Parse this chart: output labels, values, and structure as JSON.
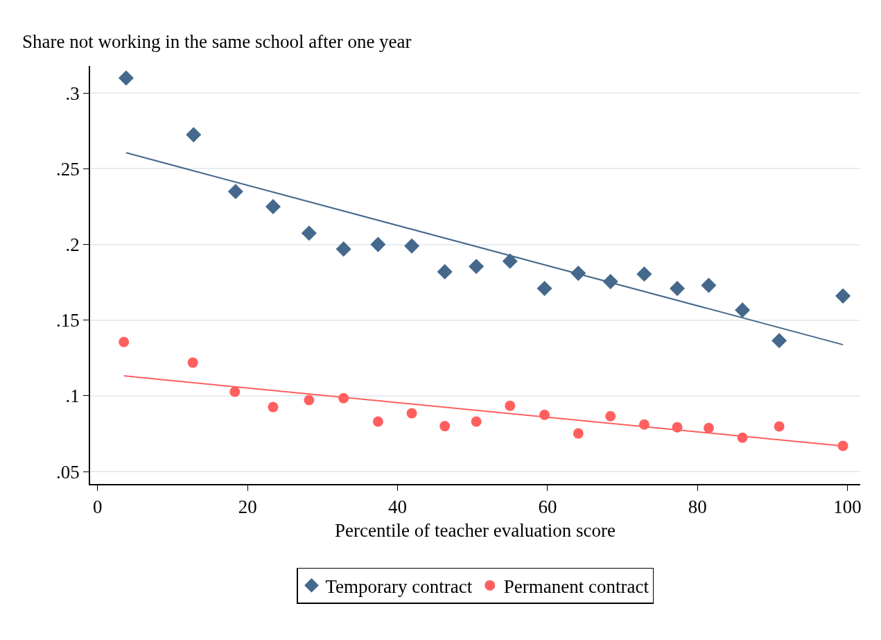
{
  "chart_data": {
    "type": "scatter",
    "ylabel": "Share not working in the same school after one year",
    "xlabel": "Percentile of teacher evaluation score",
    "xlim": [
      -1,
      101.7
    ],
    "xticks": [
      0,
      20,
      40,
      60,
      80,
      100
    ],
    "ylim": [
      0.0418,
      0.318
    ],
    "yticks": [
      {
        "value": 0.05,
        "label": ".05"
      },
      {
        "value": 0.1,
        "label": ".1"
      },
      {
        "value": 0.15,
        "label": ".15"
      },
      {
        "value": 0.2,
        "label": ".2"
      },
      {
        "value": 0.25,
        "label": ".25"
      },
      {
        "value": 0.3,
        "label": ".3"
      }
    ],
    "grid": "y",
    "legend": "bottom",
    "series": [
      {
        "name": "Temporary contract",
        "marker": "diamond",
        "color": "#45698c",
        "x": [
          3.8,
          12.8,
          18.4,
          23.4,
          28.2,
          32.8,
          37.4,
          41.9,
          46.3,
          50.5,
          55.0,
          59.6,
          64.1,
          68.4,
          72.9,
          77.3,
          81.5,
          86.0,
          90.9,
          99.4
        ],
        "values": [
          0.31,
          0.2725,
          0.235,
          0.225,
          0.2075,
          0.197,
          0.2,
          0.199,
          0.182,
          0.1855,
          0.189,
          0.171,
          0.181,
          0.1755,
          0.1805,
          0.171,
          0.173,
          0.1567,
          0.1365,
          0.166
        ]
      },
      {
        "name": "Permanent contract",
        "marker": "circle",
        "color": "#ff5f5f",
        "x": [
          3.5,
          12.7,
          18.3,
          23.4,
          28.2,
          32.8,
          37.4,
          41.9,
          46.3,
          50.5,
          55.0,
          59.6,
          64.1,
          68.4,
          72.9,
          77.3,
          81.5,
          86.0,
          90.9,
          99.4
        ],
        "values": [
          0.1356,
          0.122,
          0.1027,
          0.0926,
          0.0972,
          0.0985,
          0.083,
          0.0885,
          0.08,
          0.083,
          0.0935,
          0.0875,
          0.0752,
          0.0866,
          0.0811,
          0.0793,
          0.0788,
          0.0724,
          0.0798,
          0.067
        ]
      },
      {
        "type": "line",
        "color": "#45698c",
        "x": [
          3.8,
          99.4
        ],
        "values": [
          0.2606,
          0.1338
        ]
      },
      {
        "type": "line",
        "color": "#ff5f5f",
        "x": [
          3.5,
          99.4
        ],
        "values": [
          0.1132,
          0.0669
        ]
      }
    ]
  }
}
